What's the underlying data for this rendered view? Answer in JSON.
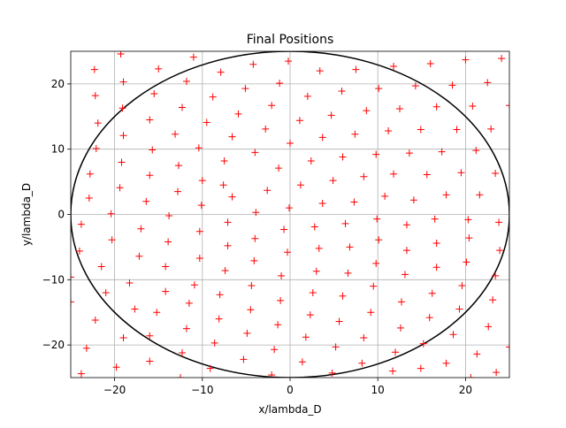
{
  "chart_data": {
    "type": "scatter",
    "title": "Final Positions",
    "xlabel": "x/lambda_D",
    "ylabel": "y/lambda_D",
    "xlim": [
      -25,
      25
    ],
    "ylim": [
      -25,
      25
    ],
    "xticks": [
      -20,
      -10,
      0,
      10,
      20
    ],
    "yticks": [
      -20,
      -10,
      0,
      10,
      20
    ],
    "xtick_labels": [
      "−20",
      "−10",
      "0",
      "10",
      "20"
    ],
    "ytick_labels": [
      "−20",
      "−10",
      "0",
      "10",
      "20"
    ],
    "grid": true,
    "marker": "+",
    "marker_color": "#ff0000",
    "boundary": {
      "shape": "circle",
      "center": [
        0,
        0
      ],
      "radius": 25,
      "color": "#000000"
    },
    "series": [
      {
        "points": [
          [
            -22.3,
            22.2
          ],
          [
            -19.3,
            24.6
          ],
          [
            -15.0,
            22.3
          ],
          [
            -11.0,
            24.1
          ],
          [
            -7.9,
            21.8
          ],
          [
            -4.2,
            23.0
          ],
          [
            -0.2,
            23.5
          ],
          [
            3.4,
            22.0
          ],
          [
            7.5,
            22.2
          ],
          [
            11.8,
            22.7
          ],
          [
            16.0,
            23.1
          ],
          [
            20.0,
            23.7
          ],
          [
            24.1,
            23.9
          ],
          [
            -22.2,
            18.2
          ],
          [
            -19.0,
            20.3
          ],
          [
            -15.5,
            18.5
          ],
          [
            -11.8,
            20.4
          ],
          [
            -8.8,
            18.0
          ],
          [
            -5.1,
            19.3
          ],
          [
            -1.2,
            20.1
          ],
          [
            2.0,
            18.1
          ],
          [
            5.9,
            18.9
          ],
          [
            10.1,
            19.3
          ],
          [
            14.3,
            19.7
          ],
          [
            18.5,
            19.8
          ],
          [
            22.5,
            20.2
          ],
          [
            -21.9,
            14.0
          ],
          [
            -19.1,
            16.3
          ],
          [
            -16.0,
            14.5
          ],
          [
            -12.3,
            16.4
          ],
          [
            -9.5,
            14.1
          ],
          [
            -5.9,
            15.4
          ],
          [
            -2.1,
            16.7
          ],
          [
            1.1,
            14.4
          ],
          [
            4.7,
            15.2
          ],
          [
            8.7,
            15.9
          ],
          [
            12.5,
            16.2
          ],
          [
            16.7,
            16.5
          ],
          [
            20.8,
            16.6
          ],
          [
            25.0,
            16.7
          ],
          [
            -22.1,
            10.1
          ],
          [
            -19.0,
            12.1
          ],
          [
            -15.7,
            9.9
          ],
          [
            -13.1,
            12.3
          ],
          [
            -10.4,
            10.2
          ],
          [
            -6.6,
            11.9
          ],
          [
            -2.8,
            13.1
          ],
          [
            0.0,
            10.9
          ],
          [
            3.7,
            11.8
          ],
          [
            7.4,
            12.3
          ],
          [
            11.2,
            12.8
          ],
          [
            14.9,
            13.0
          ],
          [
            19.0,
            13.0
          ],
          [
            22.9,
            13.1
          ],
          [
            -22.8,
            6.2
          ],
          [
            -19.2,
            8.0
          ],
          [
            -16.0,
            6.0
          ],
          [
            -12.7,
            7.5
          ],
          [
            -10.0,
            5.2
          ],
          [
            -7.5,
            8.2
          ],
          [
            -4.0,
            9.5
          ],
          [
            -1.3,
            7.1
          ],
          [
            2.4,
            8.2
          ],
          [
            6.0,
            8.8
          ],
          [
            9.8,
            9.2
          ],
          [
            13.6,
            9.4
          ],
          [
            17.3,
            9.6
          ],
          [
            21.2,
            9.8
          ],
          [
            -22.9,
            2.5
          ],
          [
            -19.4,
            4.1
          ],
          [
            -16.4,
            2.0
          ],
          [
            -12.8,
            3.5
          ],
          [
            -10.1,
            1.4
          ],
          [
            -6.6,
            2.7
          ],
          [
            -7.6,
            4.5
          ],
          [
            -2.6,
            3.7
          ],
          [
            1.2,
            4.5
          ],
          [
            4.9,
            5.2
          ],
          [
            8.4,
            5.8
          ],
          [
            11.8,
            6.2
          ],
          [
            15.6,
            6.1
          ],
          [
            19.5,
            6.4
          ],
          [
            23.4,
            6.3
          ],
          [
            -23.8,
            -1.5
          ],
          [
            -20.4,
            0.1
          ],
          [
            -17.0,
            -2.2
          ],
          [
            -13.8,
            -0.2
          ],
          [
            -10.3,
            -2.6
          ],
          [
            -7.1,
            -1.2
          ],
          [
            -3.9,
            0.3
          ],
          [
            -0.1,
            1.0
          ],
          [
            3.7,
            1.7
          ],
          [
            7.3,
            1.9
          ],
          [
            10.8,
            2.8
          ],
          [
            14.1,
            2.2
          ],
          [
            17.8,
            3.0
          ],
          [
            21.6,
            3.0
          ],
          [
            -24.0,
            -5.6
          ],
          [
            -20.3,
            -3.9
          ],
          [
            -17.2,
            -6.4
          ],
          [
            -13.9,
            -4.2
          ],
          [
            -10.3,
            -6.7
          ],
          [
            -7.1,
            -4.8
          ],
          [
            -4.0,
            -3.7
          ],
          [
            -0.7,
            -2.3
          ],
          [
            2.8,
            -1.9
          ],
          [
            6.3,
            -1.4
          ],
          [
            9.9,
            -0.7
          ],
          [
            13.3,
            -1.6
          ],
          [
            16.5,
            -0.7
          ],
          [
            20.3,
            -0.8
          ],
          [
            23.8,
            -1.2
          ],
          [
            -25.0,
            -9.6
          ],
          [
            -21.5,
            -8.0
          ],
          [
            -18.3,
            -10.5
          ],
          [
            -14.2,
            -8.0
          ],
          [
            -10.9,
            -10.8
          ],
          [
            -7.4,
            -8.6
          ],
          [
            -4.1,
            -7.1
          ],
          [
            -0.3,
            -5.8
          ],
          [
            3.3,
            -5.2
          ],
          [
            6.8,
            -5.0
          ],
          [
            10.1,
            -3.9
          ],
          [
            13.3,
            -5.5
          ],
          [
            16.7,
            -4.4
          ],
          [
            20.4,
            -3.6
          ],
          [
            23.9,
            -5.5
          ],
          [
            -25.0,
            -13.4
          ],
          [
            -21.0,
            -12.0
          ],
          [
            -17.7,
            -14.5
          ],
          [
            -14.2,
            -11.8
          ],
          [
            -11.5,
            -13.6
          ],
          [
            -8.0,
            -12.3
          ],
          [
            -4.4,
            -10.9
          ],
          [
            -1.0,
            -9.4
          ],
          [
            3.0,
            -8.7
          ],
          [
            6.6,
            -9.0
          ],
          [
            9.8,
            -7.5
          ],
          [
            13.1,
            -9.2
          ],
          [
            16.7,
            -8.1
          ],
          [
            20.1,
            -7.3
          ],
          [
            23.4,
            -9.4
          ],
          [
            -22.2,
            -16.2
          ],
          [
            -19.0,
            -18.9
          ],
          [
            -15.2,
            -15.0
          ],
          [
            -11.8,
            -17.5
          ],
          [
            -8.1,
            -16.0
          ],
          [
            -4.5,
            -14.6
          ],
          [
            -1.1,
            -13.2
          ],
          [
            2.6,
            -12.0
          ],
          [
            6.0,
            -12.5
          ],
          [
            9.5,
            -11.0
          ],
          [
            12.7,
            -13.4
          ],
          [
            16.2,
            -12.1
          ],
          [
            19.6,
            -10.9
          ],
          [
            23.1,
            -13.1
          ],
          [
            -23.2,
            -20.5
          ],
          [
            -19.8,
            -23.4
          ],
          [
            -16.0,
            -18.6
          ],
          [
            -12.3,
            -21.2
          ],
          [
            -8.6,
            -19.7
          ],
          [
            -4.9,
            -18.2
          ],
          [
            -1.4,
            -16.9
          ],
          [
            2.3,
            -15.4
          ],
          [
            5.6,
            -16.4
          ],
          [
            9.2,
            -15.0
          ],
          [
            12.6,
            -17.4
          ],
          [
            15.9,
            -15.8
          ],
          [
            19.3,
            -14.5
          ],
          [
            22.6,
            -17.2
          ],
          [
            -23.8,
            -24.4
          ],
          [
            -16.0,
            -22.5
          ],
          [
            -12.5,
            -25.0
          ],
          [
            -9.1,
            -23.6
          ],
          [
            -5.3,
            -22.2
          ],
          [
            -1.8,
            -20.7
          ],
          [
            1.8,
            -18.8
          ],
          [
            5.2,
            -20.3
          ],
          [
            8.4,
            -18.9
          ],
          [
            12.0,
            -21.1
          ],
          [
            15.2,
            -19.8
          ],
          [
            18.6,
            -18.4
          ],
          [
            21.3,
            -21.4
          ],
          [
            25.0,
            -20.3
          ],
          [
            -2.1,
            -24.6
          ],
          [
            1.4,
            -22.6
          ],
          [
            4.8,
            -24.3
          ],
          [
            8.2,
            -22.8
          ],
          [
            11.7,
            -24.0
          ],
          [
            14.9,
            -23.6
          ],
          [
            17.8,
            -22.8
          ],
          [
            20.6,
            -25.0
          ],
          [
            23.5,
            -24.2
          ]
        ]
      }
    ]
  }
}
